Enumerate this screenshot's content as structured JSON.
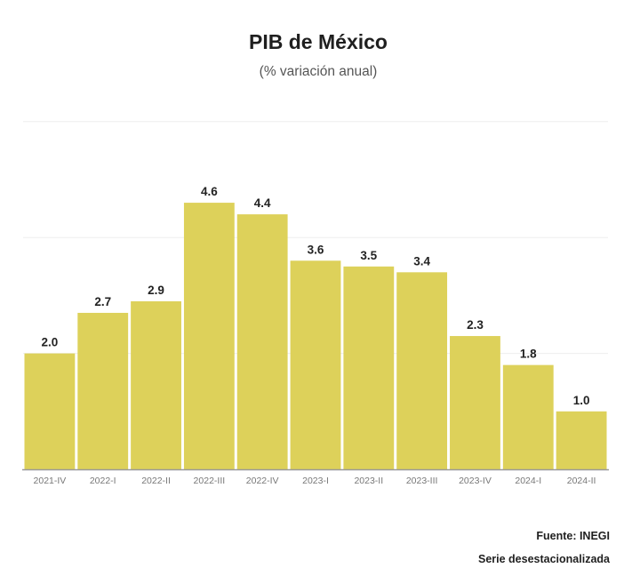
{
  "chart_data": {
    "type": "bar",
    "title": "PIB de México",
    "subtitle": "(% variación anual)",
    "categories": [
      "2021-IV",
      "2022-I",
      "2022-II",
      "2022-III",
      "2022-IV",
      "2023-I",
      "2023-II",
      "2023-III",
      "2023-IV",
      "2024-I",
      "2024-II"
    ],
    "values": [
      2.0,
      2.7,
      2.9,
      4.6,
      4.4,
      3.6,
      3.5,
      3.4,
      2.3,
      1.8,
      1.0
    ],
    "value_labels": [
      "2.0",
      "2.7",
      "2.9",
      "4.6",
      "4.4",
      "3.6",
      "3.5",
      "3.4",
      "2.3",
      "1.8",
      "1.0"
    ],
    "xlabel": "",
    "ylabel": "",
    "ylim": [
      0,
      6
    ],
    "grid": true,
    "bar_color": "#ddd15a",
    "source": "Fuente: INEGI",
    "note": "Serie desestacionalizada"
  }
}
